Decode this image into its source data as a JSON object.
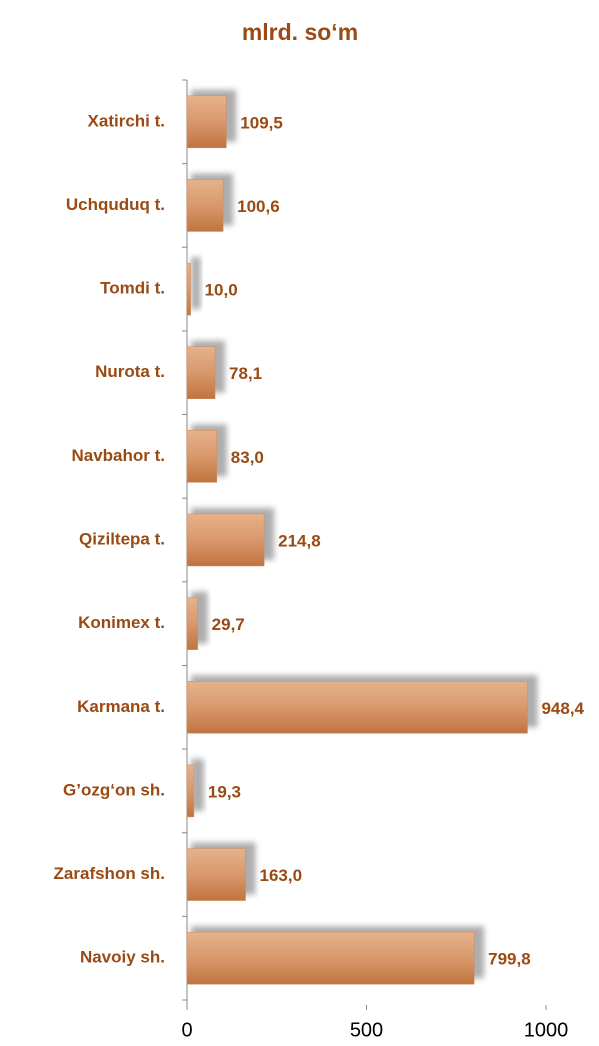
{
  "chart_data": {
    "type": "hbar",
    "title": "mlrd. so‘m",
    "categories": [
      "Xatirchi t.",
      "Uchquduq t.",
      "Tomdi t.",
      "Nurota t.",
      "Navbahor t.",
      "Qiziltepa t.",
      "Konimex t.",
      "Karmana t.",
      "G’ozg‘on sh.",
      "Zarafshon sh.",
      "Navoiy sh."
    ],
    "values": [
      109.5,
      100.6,
      10.0,
      78.1,
      83.0,
      214.8,
      29.7,
      948.4,
      19.3,
      163.0,
      799.8
    ],
    "value_labels": [
      "109,5",
      "100,6",
      "10,0",
      "78,1",
      "83,0",
      "214,8",
      "29,7",
      "948,4",
      "19,3",
      "163,0",
      "799,8"
    ],
    "color": "#d08a5a",
    "xlim": [
      0,
      1000
    ],
    "xticks": [
      0,
      500,
      1000
    ]
  }
}
